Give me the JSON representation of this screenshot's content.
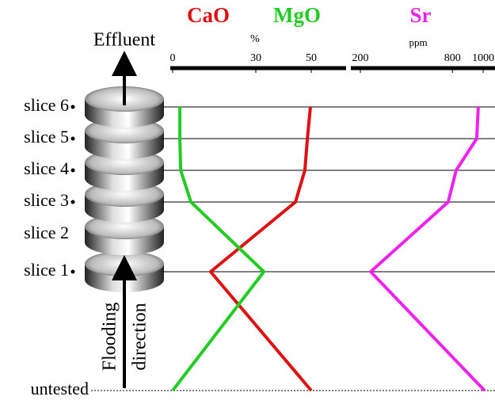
{
  "chart_data": {
    "type": "line",
    "categories": [
      "untested",
      "slice 1",
      "slice 3",
      "slice 4",
      "slice 5",
      "slice 6"
    ],
    "unsampled_label": "slice 2",
    "x_unit": "%",
    "x2_unit": "ppm",
    "xlim": [
      0,
      63
    ],
    "xticks": [
      0,
      30,
      50
    ],
    "x2lim": [
      138,
      1077
    ],
    "x2ticks": [
      200,
      800,
      1000
    ],
    "annotations": [
      "Effluent",
      "Flooding",
      "direction"
    ],
    "series": [
      {
        "name": "CaO",
        "color": "#dd1111",
        "axis": "x",
        "values": [
          50,
          13.7,
          44.3,
          47.7,
          48.6,
          49.7
        ]
      },
      {
        "name": "MgO",
        "color": "#22cc22",
        "axis": "x",
        "values": [
          0,
          32.9,
          6.6,
          2.9,
          2.6,
          2.6
        ]
      },
      {
        "name": "Sr",
        "color": "#ee22ee",
        "axis": "x2",
        "values": [
          1009,
          267,
          772,
          824,
          958,
          968
        ]
      }
    ]
  }
}
